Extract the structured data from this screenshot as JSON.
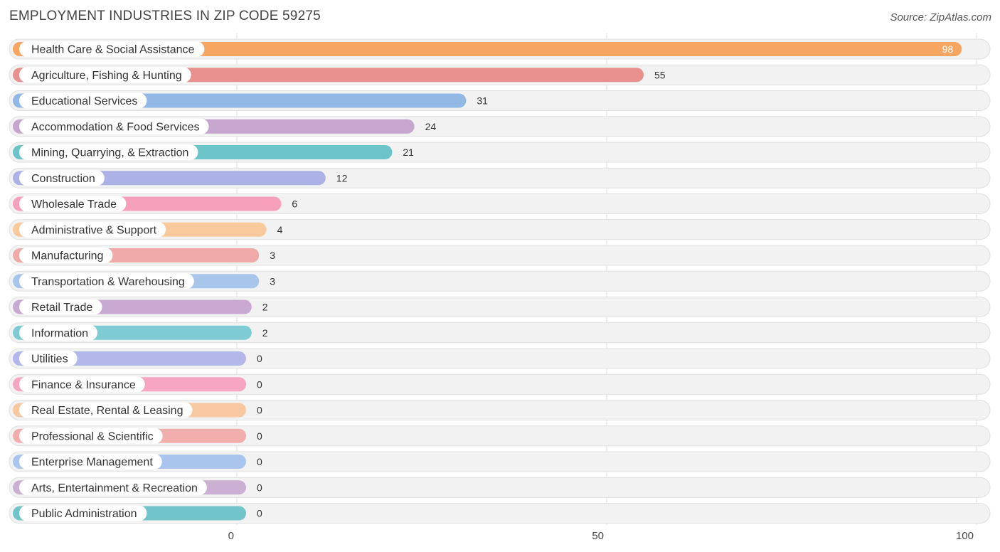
{
  "title": "EMPLOYMENT INDUSTRIES IN ZIP CODE 59275",
  "source": "Source: ZipAtlas.com",
  "chart_data": {
    "type": "bar",
    "orientation": "horizontal",
    "title": "EMPLOYMENT INDUSTRIES IN ZIP CODE 59275",
    "xlim": [
      0,
      100
    ],
    "ticks": [
      0,
      50,
      100
    ],
    "grid": true,
    "categories": [
      "Health Care & Social Assistance",
      "Agriculture, Fishing & Hunting",
      "Educational Services",
      "Accommodation & Food Services",
      "Mining, Quarrying, & Extraction",
      "Construction",
      "Wholesale Trade",
      "Administrative & Support",
      "Manufacturing",
      "Transportation & Warehousing",
      "Retail Trade",
      "Information",
      "Utilities",
      "Finance & Insurance",
      "Real Estate, Rental & Leasing",
      "Professional & Scientific",
      "Enterprise Management",
      "Arts, Entertainment & Recreation",
      "Public Administration"
    ],
    "values": [
      98,
      55,
      31,
      24,
      21,
      12,
      6,
      4,
      3,
      3,
      2,
      2,
      0,
      0,
      0,
      0,
      0,
      0,
      0
    ],
    "colors": [
      "#f6a661",
      "#e8908e",
      "#92b8e6",
      "#c6a5cf",
      "#6cc3c8",
      "#adb2e6",
      "#f6a0bc",
      "#f8c99b",
      "#f0a9a9",
      "#a8c6ec",
      "#c9a9d1",
      "#7ecbd3",
      "#b4b7ea",
      "#f6a6c2",
      "#f8c8a0",
      "#f2adad",
      "#a9c5ee",
      "#cbb0d4",
      "#72c4cb"
    ]
  }
}
